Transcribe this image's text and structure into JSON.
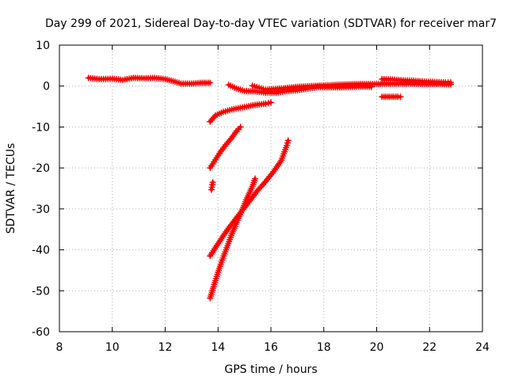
{
  "chart_data": {
    "type": "scatter",
    "title": "Day 299 of 2021, Sidereal Day-to-day VTEC variation (SDTVAR) for receiver mar7",
    "xlabel": "GPS time / hours",
    "ylabel": "SDTVAR / TECUs",
    "xlim": [
      8,
      24
    ],
    "ylim": [
      -60,
      10
    ],
    "xticks": [
      8,
      10,
      12,
      14,
      16,
      18,
      20,
      22,
      24
    ],
    "yticks": [
      -60,
      -50,
      -40,
      -30,
      -20,
      -10,
      0,
      10
    ],
    "grid": true,
    "legend": "none",
    "marker": "plus",
    "series_color": "#ff0000",
    "series": [
      {
        "values": [
          [
            9.1,
            2.0
          ],
          [
            9.5,
            1.7
          ],
          [
            10.0,
            1.8
          ],
          [
            10.4,
            1.5
          ],
          [
            10.8,
            2.0
          ],
          [
            11.2,
            1.9
          ],
          [
            11.6,
            2.0
          ],
          [
            12.0,
            1.7
          ],
          [
            12.3,
            1.2
          ],
          [
            12.6,
            0.6
          ],
          [
            13.0,
            0.6
          ],
          [
            13.4,
            0.8
          ],
          [
            13.7,
            0.8
          ]
        ]
      },
      {
        "values": [
          [
            14.4,
            0.3
          ],
          [
            14.7,
            -0.6
          ],
          [
            15.0,
            -1.2
          ],
          [
            15.4,
            -1.3
          ],
          [
            15.8,
            -1.6
          ],
          [
            16.2,
            -1.6
          ],
          [
            16.6,
            -1.2
          ],
          [
            17.0,
            -1.0
          ],
          [
            17.4,
            -0.6
          ],
          [
            17.8,
            -0.2
          ],
          [
            18.2,
            -0.3
          ],
          [
            18.6,
            -0.3
          ],
          [
            19.0,
            -0.2
          ],
          [
            19.4,
            -0.1
          ],
          [
            19.8,
            -0.2
          ]
        ]
      },
      {
        "values": [
          [
            15.3,
            0.1
          ],
          [
            15.8,
            -0.9
          ],
          [
            16.4,
            -0.6
          ],
          [
            17.0,
            -0.2
          ],
          [
            17.6,
            0.0
          ],
          [
            18.2,
            0.2
          ],
          [
            18.8,
            0.4
          ],
          [
            19.4,
            0.5
          ],
          [
            20.0,
            0.5
          ],
          [
            20.6,
            0.6
          ],
          [
            21.2,
            0.6
          ],
          [
            21.8,
            0.5
          ],
          [
            22.4,
            0.5
          ],
          [
            22.8,
            0.4
          ]
        ]
      },
      {
        "values": [
          [
            20.2,
            1.7
          ],
          [
            20.6,
            1.6
          ],
          [
            21.0,
            1.4
          ],
          [
            21.4,
            1.3
          ],
          [
            21.8,
            1.1
          ],
          [
            22.2,
            1.0
          ],
          [
            22.6,
            0.9
          ],
          [
            22.8,
            0.9
          ]
        ]
      },
      {
        "values": [
          [
            20.2,
            -2.6
          ],
          [
            20.5,
            -2.6
          ],
          [
            20.8,
            -2.6
          ],
          [
            20.9,
            -2.6
          ]
        ]
      },
      {
        "values": [
          [
            13.7,
            -8.7
          ],
          [
            13.9,
            -7.2
          ],
          [
            14.2,
            -6.3
          ],
          [
            14.6,
            -5.6
          ],
          [
            15.0,
            -5.1
          ],
          [
            15.4,
            -4.6
          ],
          [
            15.8,
            -4.3
          ],
          [
            16.0,
            -4.0
          ]
        ]
      },
      {
        "values": [
          [
            13.7,
            -20.0
          ],
          [
            13.9,
            -18.0
          ],
          [
            14.1,
            -16.0
          ],
          [
            14.3,
            -14.3
          ],
          [
            14.5,
            -12.8
          ],
          [
            14.7,
            -11.0
          ],
          [
            14.85,
            -10.0
          ]
        ]
      },
      {
        "values": [
          [
            13.75,
            -25.3
          ],
          [
            13.8,
            -23.5
          ]
        ]
      },
      {
        "values": [
          [
            13.7,
            -41.5
          ],
          [
            14.0,
            -38.5
          ],
          [
            14.3,
            -35.6
          ],
          [
            14.6,
            -33.0
          ],
          [
            14.9,
            -30.5
          ],
          [
            15.2,
            -28.0
          ],
          [
            15.5,
            -25.5
          ],
          [
            15.8,
            -23.3
          ],
          [
            16.1,
            -20.9
          ],
          [
            16.4,
            -18.1
          ],
          [
            16.6,
            -14.5
          ],
          [
            16.65,
            -13.3
          ]
        ]
      },
      {
        "values": [
          [
            13.7,
            -51.8
          ],
          [
            13.9,
            -47.5
          ],
          [
            14.1,
            -43.5
          ],
          [
            14.3,
            -40.0
          ],
          [
            14.5,
            -36.5
          ],
          [
            14.7,
            -33.3
          ],
          [
            14.9,
            -30.5
          ],
          [
            15.1,
            -27.3
          ],
          [
            15.3,
            -24.5
          ],
          [
            15.4,
            -22.6
          ]
        ]
      }
    ]
  }
}
